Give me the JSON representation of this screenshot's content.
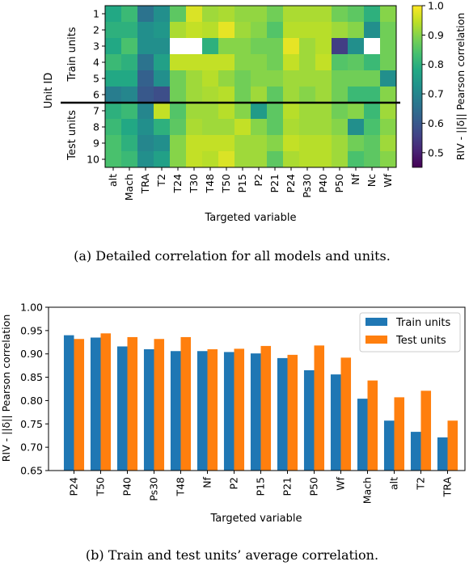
{
  "chart_data": [
    {
      "type": "heatmap",
      "xlabel": "Targeted variable",
      "ylabel": "Unit ID",
      "columns": [
        "alt",
        "Mach",
        "TRA",
        "T2",
        "T24",
        "T30",
        "T48",
        "T50",
        "P15",
        "P2",
        "P21",
        "P24",
        "Ps30",
        "P40",
        "P50",
        "Nf",
        "Nc",
        "Wf"
      ],
      "rows": [
        "1",
        "2",
        "3",
        "4",
        "5",
        "6",
        "7",
        "8",
        "9",
        "10"
      ],
      "row_groups": [
        {
          "label": "Train units",
          "rows": [
            "1",
            "2",
            "3",
            "4",
            "5",
            "6"
          ]
        },
        {
          "label": "Test units",
          "rows": [
            "7",
            "8",
            "9",
            "10"
          ]
        }
      ],
      "values": [
        [
          0.78,
          0.82,
          0.66,
          0.72,
          0.86,
          0.97,
          0.92,
          0.93,
          0.91,
          0.91,
          0.88,
          0.93,
          0.93,
          0.93,
          0.88,
          0.86,
          0.8,
          0.9
        ],
        [
          0.8,
          0.8,
          0.72,
          0.74,
          0.93,
          0.95,
          0.94,
          0.98,
          0.92,
          0.9,
          0.85,
          0.94,
          0.94,
          0.94,
          0.92,
          0.9,
          0.72,
          0.88
        ],
        [
          0.78,
          0.84,
          0.72,
          0.72,
          null,
          null,
          0.8,
          0.9,
          0.9,
          0.88,
          0.88,
          0.98,
          0.92,
          0.94,
          0.55,
          0.72,
          null,
          0.88
        ],
        [
          0.82,
          0.8,
          0.66,
          0.76,
          0.95,
          0.95,
          0.95,
          0.95,
          0.9,
          0.9,
          0.88,
          0.95,
          0.92,
          0.95,
          0.85,
          0.86,
          0.82,
          0.88
        ],
        [
          0.78,
          0.78,
          0.62,
          0.72,
          0.88,
          0.92,
          0.94,
          0.91,
          0.88,
          0.9,
          0.9,
          0.92,
          0.92,
          0.92,
          0.88,
          0.88,
          0.88,
          0.72
        ],
        [
          0.68,
          0.7,
          0.6,
          0.58,
          0.88,
          0.92,
          0.93,
          0.94,
          0.88,
          0.92,
          0.86,
          0.92,
          0.9,
          0.92,
          0.88,
          0.82,
          0.82,
          0.9
        ],
        [
          0.8,
          0.82,
          0.7,
          0.95,
          0.85,
          0.92,
          0.92,
          0.94,
          0.9,
          0.75,
          0.86,
          0.94,
          0.92,
          0.92,
          0.88,
          0.9,
          0.82,
          0.92
        ],
        [
          0.82,
          0.78,
          0.72,
          0.8,
          0.86,
          0.93,
          0.92,
          0.92,
          0.95,
          0.9,
          0.86,
          0.93,
          0.92,
          0.92,
          0.9,
          0.72,
          0.84,
          0.9
        ],
        [
          0.84,
          0.8,
          0.7,
          0.72,
          0.9,
          0.95,
          0.95,
          0.95,
          0.92,
          0.92,
          0.9,
          0.95,
          0.94,
          0.94,
          0.92,
          0.88,
          0.86,
          0.92
        ],
        [
          0.84,
          0.82,
          0.72,
          0.76,
          0.9,
          0.95,
          0.94,
          0.97,
          0.92,
          0.92,
          0.86,
          0.93,
          0.94,
          0.94,
          0.92,
          0.84,
          0.86,
          0.9
        ]
      ],
      "colorbar": {
        "label": "RIV - ||δ|| Pearson correlation",
        "range": [
          0.45,
          1.0
        ],
        "ticks": [
          "0.5",
          "0.6",
          "0.7",
          "0.8",
          "0.9",
          "1.0"
        ]
      }
    },
    {
      "type": "bar",
      "xlabel": "Targeted variable",
      "ylabel": "RIV - ||δ|| Pearson correlation",
      "ylim": [
        0.65,
        1.0
      ],
      "yticks": [
        "0.65",
        "0.70",
        "0.75",
        "0.80",
        "0.85",
        "0.90",
        "0.95",
        "1.00"
      ],
      "categories": [
        "P24",
        "T50",
        "P40",
        "Ps30",
        "T48",
        "Nf",
        "P2",
        "P15",
        "P21",
        "P50",
        "Wf",
        "Mach",
        "alt",
        "T2",
        "TRA"
      ],
      "series": [
        {
          "name": "Train units",
          "color": "#1f77b4",
          "values": [
            0.94,
            0.935,
            0.916,
            0.91,
            0.906,
            0.906,
            0.904,
            0.901,
            0.891,
            0.865,
            0.856,
            0.804,
            0.757,
            0.733,
            0.721
          ]
        },
        {
          "name": "Test units",
          "color": "#ff7f0e",
          "values": [
            0.932,
            0.944,
            0.936,
            0.932,
            0.936,
            0.91,
            0.911,
            0.917,
            0.898,
            0.918,
            0.892,
            0.843,
            0.807,
            0.821,
            0.757
          ]
        }
      ],
      "legend": "top-right",
      "grid": false
    }
  ],
  "captions": {
    "a": "(a) Detailed correlation for all models and units.",
    "b": "(b) Train and test units’ average correlation."
  }
}
